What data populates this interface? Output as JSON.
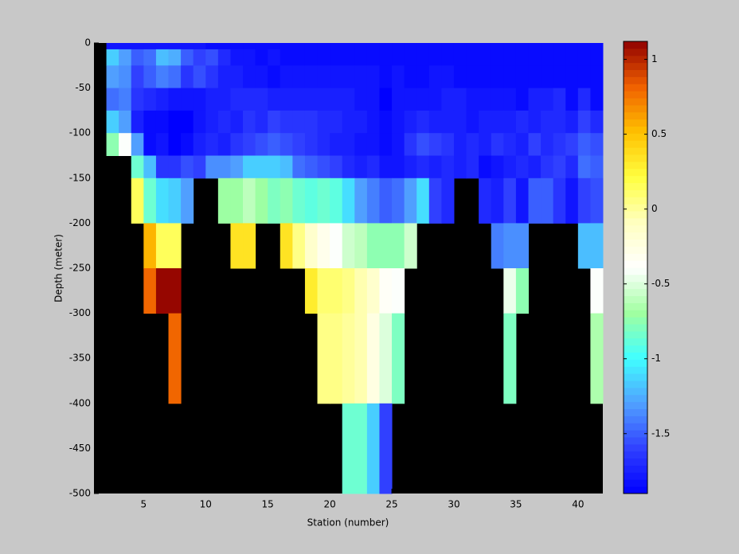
{
  "chart_data": {
    "type": "heatmap",
    "x_label": "Station (number)",
    "y_label": "Depth (meter)",
    "xlim": [
      1,
      42
    ],
    "xticks": [
      5,
      10,
      15,
      20,
      25,
      30,
      35,
      40
    ],
    "ylim": [
      -500,
      0
    ],
    "yticks": [
      0,
      -50,
      -100,
      -150,
      -200,
      -250,
      -300,
      -350,
      -400,
      -450,
      -500
    ],
    "xbins": [
      2,
      3,
      4,
      5,
      6,
      7,
      8,
      9,
      10,
      11,
      12,
      13,
      14,
      15,
      16,
      17,
      18,
      19,
      20,
      21,
      22,
      23,
      24,
      25,
      26,
      27,
      28,
      29,
      30,
      31,
      32,
      33,
      34,
      35,
      36,
      37,
      38,
      39,
      40,
      41,
      42
    ],
    "ybins": [
      0,
      -7,
      -25,
      -50,
      -75,
      -100,
      -125,
      -150,
      -200,
      -250,
      -300,
      -400,
      -500
    ],
    "axes_color": "#000000",
    "colormap": [
      "#0000ff",
      "#3040ff",
      "#50a0ff",
      "#40ffff",
      "#a0ffa0",
      "#ffffff",
      "#ffffc0",
      "#ffff40",
      "#ffc000",
      "#f06000",
      "#900000"
    ],
    "colorbar": {
      "clim": [
        -1.9,
        1.12
      ],
      "ticks": [
        1,
        0.5,
        0,
        -0.5,
        -1,
        -1.5
      ]
    },
    "z": [
      [
        -1.8,
        -1.8,
        -1.8,
        -1.8,
        -1.8,
        -1.8,
        -1.8,
        -1.8,
        -1.85,
        -1.85,
        -1.85,
        -1.85,
        -1.85,
        -1.85,
        -1.85,
        -1.85,
        -1.85,
        -1.85,
        -1.85,
        -1.85,
        -1.85,
        -1.85,
        -1.85,
        -1.85,
        -1.85,
        -1.85,
        -1.85,
        -1.85,
        -1.85,
        -1.85,
        -1.85,
        -1.85,
        -1.85,
        -1.85,
        -1.85,
        -1.85,
        -1.85,
        -1.85,
        -1.85,
        -1.85
      ],
      [
        -1.15,
        -1.3,
        -1.5,
        -1.45,
        -1.2,
        -1.25,
        -1.5,
        -1.6,
        -1.55,
        -1.7,
        -1.8,
        -1.8,
        -1.85,
        -1.8,
        -1.85,
        -1.85,
        -1.85,
        -1.85,
        -1.85,
        -1.85,
        -1.85,
        -1.85,
        -1.85,
        -1.85,
        -1.85,
        -1.85,
        -1.85,
        -1.85,
        -1.85,
        -1.85,
        -1.85,
        -1.85,
        -1.85,
        -1.85,
        -1.85,
        -1.85,
        -1.85,
        -1.85,
        -1.85,
        -1.85
      ],
      [
        -1.3,
        -1.35,
        -1.6,
        -1.5,
        -1.4,
        -1.45,
        -1.65,
        -1.55,
        -1.65,
        -1.75,
        -1.75,
        -1.8,
        -1.8,
        -1.85,
        -1.8,
        -1.8,
        -1.8,
        -1.8,
        -1.8,
        -1.8,
        -1.8,
        -1.8,
        -1.85,
        -1.8,
        -1.85,
        -1.85,
        -1.8,
        -1.8,
        -1.85,
        -1.85,
        -1.85,
        -1.85,
        -1.85,
        -1.85,
        -1.85,
        -1.85,
        -1.85,
        -1.85,
        -1.85,
        -1.85
      ],
      [
        -1.45,
        -1.4,
        -1.65,
        -1.7,
        -1.75,
        -1.8,
        -1.8,
        -1.8,
        -1.75,
        -1.75,
        -1.7,
        -1.7,
        -1.7,
        -1.75,
        -1.75,
        -1.75,
        -1.75,
        -1.75,
        -1.75,
        -1.75,
        -1.8,
        -1.8,
        -1.9,
        -1.8,
        -1.8,
        -1.8,
        -1.8,
        -1.75,
        -1.75,
        -1.8,
        -1.8,
        -1.8,
        -1.8,
        -1.85,
        -1.75,
        -1.75,
        -1.7,
        -1.85,
        -1.7,
        -1.85
      ],
      [
        -1.15,
        -1.3,
        -1.75,
        -1.85,
        -1.85,
        -1.9,
        -1.9,
        -1.8,
        -1.75,
        -1.7,
        -1.75,
        -1.65,
        -1.7,
        -1.6,
        -1.65,
        -1.65,
        -1.65,
        -1.7,
        -1.7,
        -1.75,
        -1.75,
        -1.8,
        -1.85,
        -1.8,
        -1.75,
        -1.7,
        -1.75,
        -1.75,
        -1.75,
        -1.8,
        -1.75,
        -1.75,
        -1.75,
        -1.7,
        -1.75,
        -1.7,
        -1.7,
        -1.75,
        -1.6,
        -1.7
      ],
      [
        -0.75,
        -0.4,
        -1.3,
        -1.85,
        -1.8,
        -1.9,
        -1.85,
        -1.75,
        -1.7,
        -1.75,
        -1.65,
        -1.6,
        -1.55,
        -1.5,
        -1.55,
        -1.6,
        -1.65,
        -1.7,
        -1.75,
        -1.75,
        -1.8,
        -1.8,
        -1.85,
        -1.8,
        -1.65,
        -1.55,
        -1.6,
        -1.65,
        -1.75,
        -1.7,
        -1.75,
        -1.65,
        -1.7,
        -1.75,
        -1.6,
        -1.7,
        -1.65,
        -1.6,
        -1.5,
        -1.55
      ],
      [
        null,
        null,
        -0.85,
        -1.2,
        -1.65,
        -1.65,
        -1.55,
        -1.6,
        -1.35,
        -1.35,
        -1.3,
        -1.15,
        -1.15,
        -1.15,
        -1.2,
        -1.45,
        -1.5,
        -1.55,
        -1.6,
        -1.7,
        -1.75,
        -1.7,
        -1.8,
        -1.8,
        -1.75,
        -1.7,
        -1.75,
        -1.7,
        -1.75,
        -1.7,
        -1.85,
        -1.8,
        -1.75,
        -1.7,
        -1.75,
        -1.65,
        -1.6,
        -1.7,
        -1.45,
        -1.5
      ],
      [
        null,
        null,
        0.15,
        -0.85,
        -1.1,
        -1.15,
        -1.3,
        null,
        null,
        -0.7,
        -0.7,
        -0.6,
        -0.7,
        -0.8,
        -0.75,
        -0.85,
        -0.9,
        -0.85,
        -0.9,
        -1.1,
        -1.3,
        -1.4,
        -1.5,
        -1.45,
        -1.3,
        -1.1,
        -1.6,
        -1.7,
        null,
        null,
        -1.7,
        -1.75,
        -1.6,
        -1.8,
        -1.5,
        -1.5,
        -1.65,
        -1.8,
        -1.6,
        -1.55
      ],
      [
        null,
        null,
        null,
        0.55,
        0.15,
        0.15,
        null,
        null,
        null,
        null,
        0.35,
        0.35,
        null,
        null,
        0.35,
        0.05,
        -0.15,
        -0.3,
        -0.4,
        -0.55,
        -0.6,
        -0.75,
        -0.75,
        -0.75,
        -0.55,
        null,
        null,
        null,
        null,
        null,
        null,
        -1.4,
        -1.35,
        -1.35,
        null,
        null,
        null,
        null,
        -1.2,
        -1.2
      ],
      [
        null,
        null,
        null,
        0.8,
        1.1,
        1.1,
        null,
        null,
        null,
        null,
        null,
        null,
        null,
        null,
        null,
        null,
        0.3,
        0.1,
        0.1,
        0.05,
        -0.05,
        -0.15,
        -0.35,
        -0.4,
        null,
        null,
        null,
        null,
        null,
        null,
        null,
        null,
        -0.45,
        -0.75,
        null,
        null,
        null,
        null,
        null,
        -0.4
      ],
      [
        null,
        null,
        null,
        null,
        null,
        0.8,
        null,
        null,
        null,
        null,
        null,
        null,
        null,
        null,
        null,
        null,
        null,
        0.05,
        0.05,
        0.0,
        -0.05,
        -0.25,
        -0.5,
        -0.8,
        null,
        null,
        null,
        null,
        null,
        null,
        null,
        null,
        -0.8,
        null,
        null,
        null,
        null,
        null,
        null,
        -0.65
      ],
      [
        null,
        null,
        null,
        null,
        null,
        null,
        null,
        null,
        null,
        null,
        null,
        null,
        null,
        null,
        null,
        null,
        null,
        null,
        null,
        -0.85,
        -0.85,
        -1.15,
        -1.6,
        null,
        null,
        null,
        null,
        null,
        null,
        null,
        null,
        null,
        null,
        null,
        null,
        null,
        null,
        null,
        null,
        null
      ]
    ]
  }
}
